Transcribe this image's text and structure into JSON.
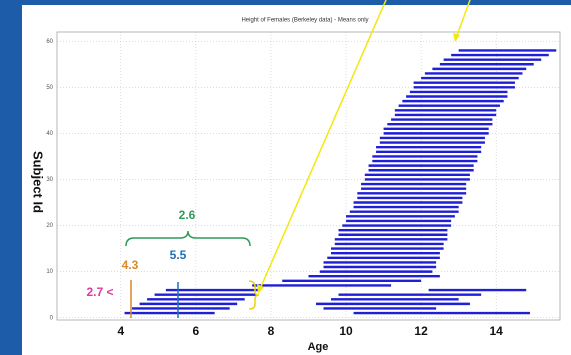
{
  "chart_data": {
    "type": "range-bar",
    "title": "Height of Females (Berkeley data) - Means only",
    "xlabel": "Age",
    "ylabel": "Subject Id",
    "xlim": [
      2.3,
      15.7
    ],
    "xticks": [
      4,
      6,
      8,
      10,
      12,
      14
    ],
    "ylim": [
      -0.5,
      62
    ],
    "yticks": [
      0,
      10,
      20,
      30,
      40,
      50,
      60
    ],
    "grid": true,
    "color": "#1f1fd6",
    "bars": {
      "subject": [
        1,
        1,
        2,
        2,
        3,
        3,
        4,
        4,
        5,
        5,
        6,
        6,
        7,
        8,
        9,
        10,
        11,
        12,
        13,
        14,
        15,
        16,
        17,
        18,
        19,
        20,
        21,
        22,
        23,
        24,
        25,
        26,
        27,
        28,
        29,
        30,
        31,
        32,
        33,
        34,
        35,
        36,
        37,
        38,
        39,
        40,
        41,
        42,
        43,
        44,
        45,
        46,
        47,
        48,
        49,
        50,
        51,
        52,
        53,
        54,
        55,
        56,
        57,
        58
      ],
      "start": [
        4.1,
        10.2,
        4.3,
        9.4,
        4.5,
        9.2,
        4.7,
        9.6,
        4.9,
        9.8,
        5.2,
        12.2,
        7.5,
        8.3,
        9.0,
        9.3,
        9.4,
        9.4,
        9.5,
        9.6,
        9.6,
        9.7,
        9.7,
        9.8,
        9.8,
        9.9,
        10.0,
        10.0,
        10.1,
        10.2,
        10.2,
        10.3,
        10.3,
        10.4,
        10.4,
        10.5,
        10.5,
        10.6,
        10.6,
        10.7,
        10.7,
        10.8,
        10.8,
        10.9,
        10.9,
        11.0,
        11.0,
        11.1,
        11.2,
        11.3,
        11.3,
        11.4,
        11.5,
        11.6,
        11.7,
        11.8,
        11.8,
        12.0,
        12.1,
        12.3,
        12.5,
        12.6,
        12.8,
        13.0
      ],
      "end": [
        6.5,
        14.9,
        6.9,
        12.4,
        7.1,
        13.3,
        7.3,
        13.0,
        7.6,
        13.6,
        7.7,
        14.8,
        11.2,
        12.0,
        12.5,
        12.3,
        12.4,
        12.4,
        12.5,
        12.5,
        12.6,
        12.6,
        12.7,
        12.7,
        12.7,
        12.8,
        12.8,
        12.9,
        13.0,
        13.0,
        13.1,
        13.1,
        13.2,
        13.2,
        13.2,
        13.3,
        13.3,
        13.4,
        13.4,
        13.5,
        13.5,
        13.6,
        13.6,
        13.7,
        13.7,
        13.8,
        13.8,
        13.9,
        13.9,
        14.0,
        14.0,
        14.1,
        14.2,
        14.3,
        14.3,
        14.5,
        14.5,
        14.6,
        14.7,
        14.8,
        15.0,
        15.2,
        15.4,
        15.6
      ]
    },
    "annotations": [
      "2.6",
      "5.5",
      "4.3",
      "2.7 <"
    ]
  }
}
